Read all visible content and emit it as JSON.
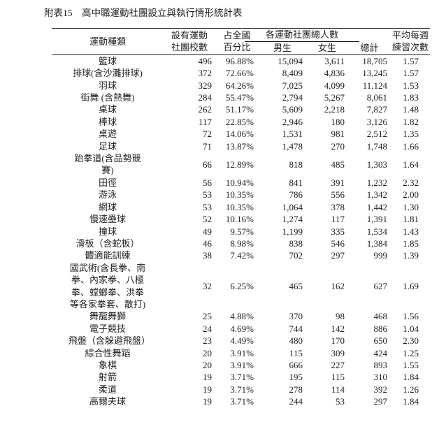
{
  "page": {
    "title": "附表15　高中職運動社團設立與執行情形統計表"
  },
  "table": {
    "headers": {
      "sport": "運動種類",
      "schools": "設有運動\n社團校數",
      "percent": "占全國\n百分比",
      "members_group": "各運動社團總人數",
      "male": "男生",
      "female": "女生",
      "total": "總計",
      "avg": "平均每週\n練習次數"
    },
    "rows": [
      {
        "sport": "籃球",
        "schools": "496",
        "percent": "96.88%",
        "male": "15,094",
        "female": "3,611",
        "total": "18,705",
        "avg": "1.57"
      },
      {
        "sport": "排球(含沙灘排球)",
        "schools": "372",
        "percent": "72.66%",
        "male": "8,409",
        "female": "4,836",
        "total": "13,245",
        "avg": "1.57"
      },
      {
        "sport": "羽球",
        "schools": "329",
        "percent": "64.26%",
        "male": "7,025",
        "female": "4,099",
        "total": "11,124",
        "avg": "1.53"
      },
      {
        "sport": "街舞 (含熱舞)",
        "schools": "284",
        "percent": "55.47%",
        "male": "2,794",
        "female": "5,267",
        "total": "8,061",
        "avg": "1.83"
      },
      {
        "sport": "桌球",
        "schools": "262",
        "percent": "51.17%",
        "male": "5,609",
        "female": "2,218",
        "total": "7,827",
        "avg": "1.48"
      },
      {
        "sport": "棒球",
        "schools": "117",
        "percent": "22.85%",
        "male": "2,946",
        "female": "180",
        "total": "3,126",
        "avg": "1.82"
      },
      {
        "sport": "桌遊",
        "schools": "72",
        "percent": "14.06%",
        "male": "1,531",
        "female": "981",
        "total": "2,512",
        "avg": "1.35"
      },
      {
        "sport": "足球",
        "schools": "71",
        "percent": "13.87%",
        "male": "1,478",
        "female": "270",
        "total": "1,748",
        "avg": "1.66"
      },
      {
        "sport": "跆拳道(含品勢競賽)",
        "schools": "66",
        "percent": "12.89%",
        "male": "818",
        "female": "485",
        "total": "1,303",
        "avg": "1.64"
      },
      {
        "sport": "田徑",
        "schools": "56",
        "percent": "10.94%",
        "male": "841",
        "female": "391",
        "total": "1,232",
        "avg": "2.32"
      },
      {
        "sport": "游泳",
        "schools": "53",
        "percent": "10.35%",
        "male": "786",
        "female": "556",
        "total": "1,342",
        "avg": "2.00"
      },
      {
        "sport": "網球",
        "schools": "53",
        "percent": "10.35%",
        "male": "1,064",
        "female": "378",
        "total": "1,442",
        "avg": "1.30"
      },
      {
        "sport": "慢速壘球",
        "schools": "52",
        "percent": "10.16%",
        "male": "1,274",
        "female": "117",
        "total": "1,391",
        "avg": "1.81"
      },
      {
        "sport": "撞球",
        "schools": "49",
        "percent": "9.57%",
        "male": "1,199",
        "female": "335",
        "total": "1,534",
        "avg": "1.43"
      },
      {
        "sport": "滑板（含蛇板）",
        "schools": "46",
        "percent": "8.98%",
        "male": "838",
        "female": "546",
        "total": "1,384",
        "avg": "1.85"
      },
      {
        "sport": "體適能訓練",
        "schools": "38",
        "percent": "7.42%",
        "male": "702",
        "female": "297",
        "total": "999",
        "avg": "1.39"
      },
      {
        "sport": "國武術(含長拳、南拳、內家拳、八極拳、螳螂拳、洪拳等各家拳套、散打)",
        "schools": "32",
        "percent": "6.25%",
        "male": "465",
        "female": "162",
        "total": "627",
        "avg": "1.69"
      },
      {
        "sport": "舞龍舞獅",
        "schools": "25",
        "percent": "4.88%",
        "male": "370",
        "female": "98",
        "total": "468",
        "avg": "1.56"
      },
      {
        "sport": "電子競技",
        "schools": "24",
        "percent": "4.69%",
        "male": "744",
        "female": "142",
        "total": "886",
        "avg": "1.04"
      },
      {
        "sport": "飛盤（含躲避飛盤）",
        "schools": "23",
        "percent": "4.49%",
        "male": "480",
        "female": "170",
        "total": "650",
        "avg": "2.30"
      },
      {
        "sport": "綜合性舞蹈",
        "schools": "20",
        "percent": "3.91%",
        "male": "115",
        "female": "309",
        "total": "424",
        "avg": "1.25"
      },
      {
        "sport": "象棋",
        "schools": "20",
        "percent": "3.91%",
        "male": "666",
        "female": "227",
        "total": "893",
        "avg": "1.55"
      },
      {
        "sport": "射箭",
        "schools": "19",
        "percent": "3.71%",
        "male": "195",
        "female": "115",
        "total": "310",
        "avg": "1.84"
      },
      {
        "sport": "柔道",
        "schools": "19",
        "percent": "3.71%",
        "male": "278",
        "female": "114",
        "total": "392",
        "avg": "1.26"
      },
      {
        "sport": "高爾夫球",
        "schools": "19",
        "percent": "3.71%",
        "male": "244",
        "female": "53",
        "total": "297",
        "avg": "1.84"
      }
    ]
  }
}
